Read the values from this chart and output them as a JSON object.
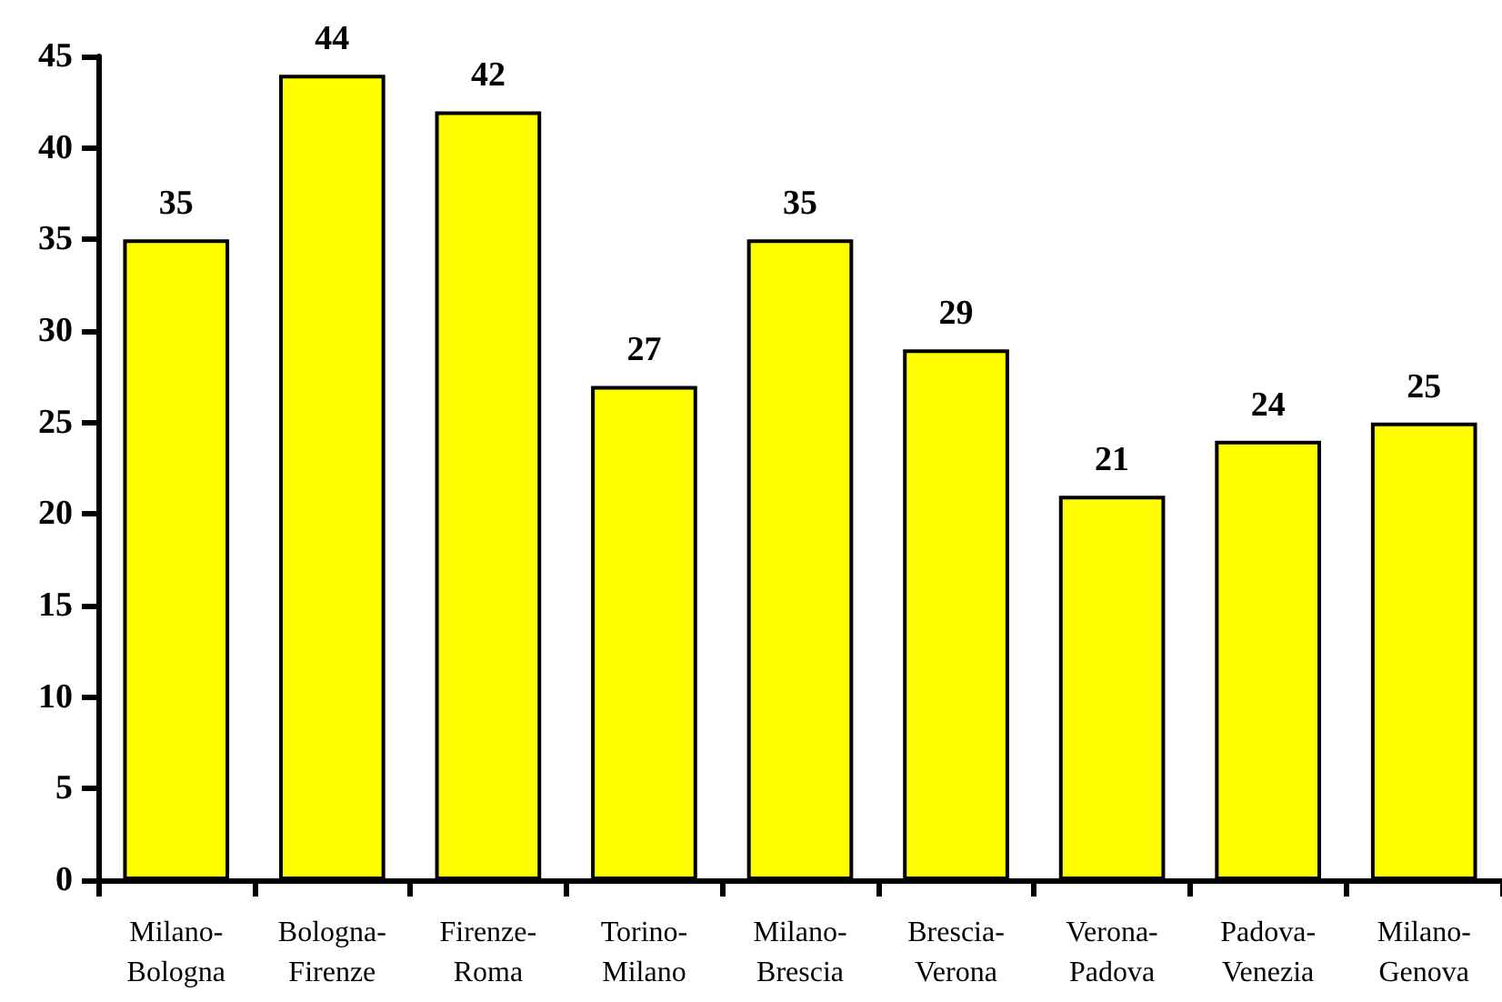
{
  "chart_data": {
    "type": "bar",
    "categories": [
      "Milano-Bologna",
      "Bologna-Firenze",
      "Firenze-Roma",
      "Torino-Milano",
      "Milano-Brescia",
      "Brescia-Verona",
      "Verona-Padova",
      "Padova-Venezia",
      "Milano-Genova"
    ],
    "values": [
      35,
      44,
      42,
      27,
      35,
      29,
      21,
      24,
      25
    ],
    "color": "#ffff00",
    "ylim": [
      0,
      45
    ],
    "yticks": [
      0,
      5,
      10,
      15,
      20,
      25,
      30,
      35,
      40,
      45
    ],
    "data_labels": true
  }
}
